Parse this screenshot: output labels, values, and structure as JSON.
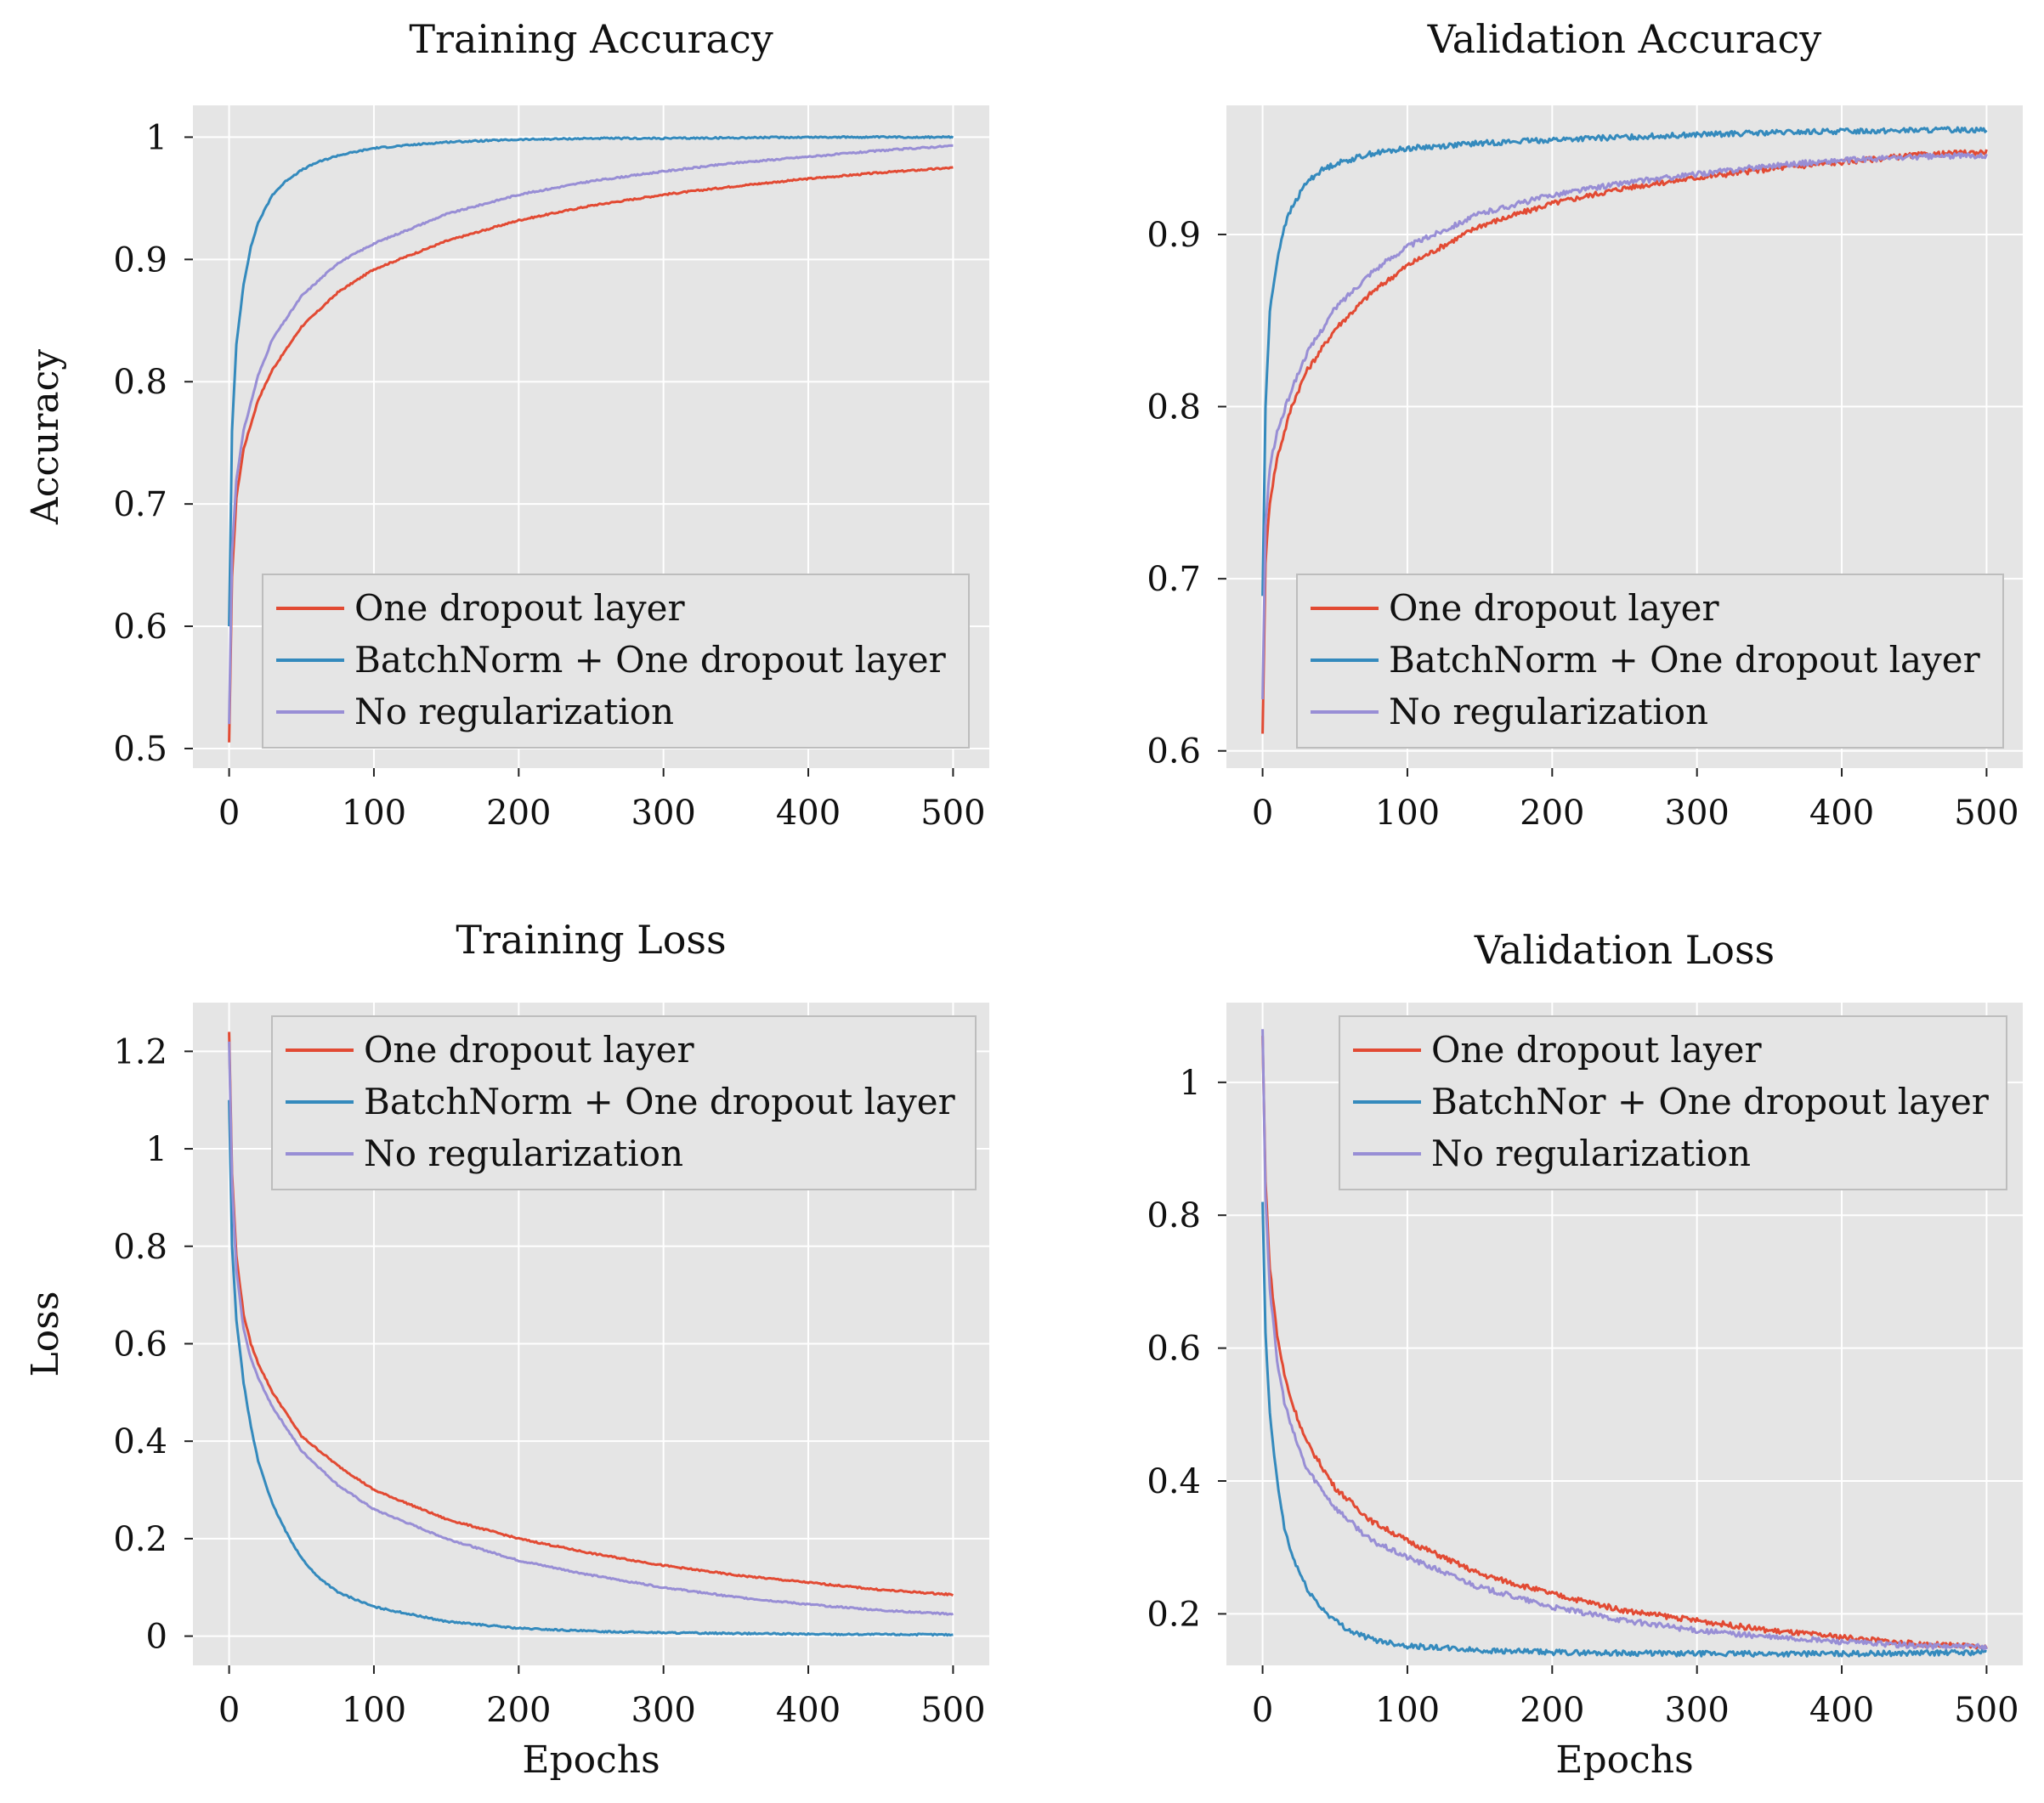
{
  "chart_data": [
    {
      "id": "training-accuracy",
      "type": "line",
      "title": "Training Accuracy",
      "xlabel": "",
      "ylabel": "Accuracy",
      "xlim": [
        -25,
        525
      ],
      "ylim": [
        0.484,
        1.026
      ],
      "xticks": [
        0,
        100,
        200,
        300,
        400,
        500
      ],
      "yticks": [
        0.5,
        0.6,
        0.7,
        0.8,
        0.9,
        1
      ],
      "ytick_labels": [
        "0.5",
        "0.6",
        "0.7",
        "0.8",
        "0.9",
        "1"
      ],
      "grid": true,
      "legend_position": "lower-right",
      "series": [
        {
          "name": "One dropout layer",
          "color": "#E24A33",
          "x": [
            0,
            2,
            5,
            10,
            20,
            30,
            50,
            75,
            100,
            150,
            200,
            250,
            300,
            350,
            400,
            450,
            500
          ],
          "y": [
            0.505,
            0.64,
            0.705,
            0.745,
            0.785,
            0.81,
            0.845,
            0.873,
            0.892,
            0.915,
            0.932,
            0.944,
            0.953,
            0.96,
            0.966,
            0.971,
            0.975
          ]
        },
        {
          "name": "BatchNorm + One dropout layer",
          "color": "#348ABD",
          "x": [
            0,
            2,
            5,
            10,
            15,
            20,
            30,
            40,
            50,
            60,
            75,
            100,
            150,
            200,
            250,
            300,
            400,
            500
          ],
          "y": [
            0.6,
            0.76,
            0.83,
            0.88,
            0.91,
            0.93,
            0.953,
            0.965,
            0.973,
            0.979,
            0.985,
            0.991,
            0.996,
            0.998,
            0.999,
            0.999,
            1.0,
            1.0
          ]
        },
        {
          "name": "No regularization",
          "color": "#988ED5",
          "x": [
            0,
            2,
            5,
            10,
            20,
            30,
            50,
            75,
            100,
            150,
            200,
            250,
            300,
            350,
            400,
            450,
            500
          ],
          "y": [
            0.52,
            0.66,
            0.72,
            0.76,
            0.805,
            0.835,
            0.87,
            0.897,
            0.913,
            0.937,
            0.953,
            0.964,
            0.972,
            0.979,
            0.984,
            0.989,
            0.993
          ]
        }
      ]
    },
    {
      "id": "validation-accuracy",
      "type": "line",
      "title": "Validation Accuracy",
      "xlabel": "",
      "ylabel": "",
      "xlim": [
        -25,
        525
      ],
      "ylim": [
        0.59,
        0.975
      ],
      "xticks": [
        0,
        100,
        200,
        300,
        400,
        500
      ],
      "yticks": [
        0.6,
        0.7,
        0.8,
        0.9
      ],
      "ytick_labels": [
        "0.6",
        "0.7",
        "0.8",
        "0.9"
      ],
      "grid": true,
      "legend_position": "lower-right",
      "series": [
        {
          "name": "One dropout layer",
          "color": "#E24A33",
          "x": [
            0,
            2,
            5,
            10,
            20,
            30,
            50,
            75,
            100,
            150,
            200,
            250,
            300,
            350,
            400,
            450,
            500
          ],
          "y": [
            0.61,
            0.71,
            0.745,
            0.77,
            0.8,
            0.82,
            0.845,
            0.866,
            0.882,
            0.905,
            0.918,
            0.927,
            0.933,
            0.938,
            0.942,
            0.946,
            0.948
          ]
        },
        {
          "name": "BatchNorm + One dropout layer",
          "color": "#348ABD",
          "x": [
            0,
            2,
            5,
            10,
            15,
            20,
            30,
            40,
            50,
            75,
            100,
            150,
            200,
            300,
            400,
            500
          ],
          "y": [
            0.69,
            0.8,
            0.855,
            0.885,
            0.905,
            0.915,
            0.93,
            0.937,
            0.941,
            0.947,
            0.95,
            0.953,
            0.955,
            0.958,
            0.96,
            0.961
          ]
        },
        {
          "name": "No regularization",
          "color": "#988ED5",
          "x": [
            0,
            2,
            5,
            10,
            20,
            30,
            50,
            75,
            100,
            150,
            200,
            250,
            300,
            350,
            400,
            450,
            500
          ],
          "y": [
            0.63,
            0.73,
            0.765,
            0.785,
            0.81,
            0.83,
            0.857,
            0.878,
            0.893,
            0.912,
            0.923,
            0.93,
            0.935,
            0.94,
            0.943,
            0.945,
            0.946
          ]
        }
      ]
    },
    {
      "id": "training-loss",
      "type": "line",
      "title": "Training Loss",
      "xlabel": "Epochs",
      "ylabel": "Loss",
      "xlim": [
        -25,
        525
      ],
      "ylim": [
        -0.06,
        1.3
      ],
      "xticks": [
        0,
        100,
        200,
        300,
        400,
        500
      ],
      "yticks": [
        0,
        0.2,
        0.4,
        0.6,
        0.8,
        1,
        1.2
      ],
      "ytick_labels": [
        "0",
        "0.2",
        "0.4",
        "0.6",
        "0.8",
        "1",
        "1.2"
      ],
      "grid": true,
      "legend_position": "top-right",
      "series": [
        {
          "name": "One dropout layer",
          "color": "#E24A33",
          "x": [
            0,
            2,
            5,
            10,
            15,
            20,
            30,
            50,
            75,
            100,
            150,
            200,
            250,
            300,
            350,
            400,
            450,
            500
          ],
          "y": [
            1.24,
            0.95,
            0.78,
            0.66,
            0.6,
            0.56,
            0.5,
            0.41,
            0.35,
            0.3,
            0.24,
            0.2,
            0.17,
            0.145,
            0.125,
            0.11,
            0.095,
            0.085
          ]
        },
        {
          "name": "BatchNorm + One dropout layer",
          "color": "#348ABD",
          "x": [
            0,
            2,
            5,
            10,
            15,
            20,
            30,
            40,
            50,
            60,
            75,
            100,
            150,
            200,
            250,
            300,
            400,
            500
          ],
          "y": [
            1.1,
            0.8,
            0.65,
            0.52,
            0.43,
            0.36,
            0.27,
            0.21,
            0.16,
            0.125,
            0.09,
            0.06,
            0.03,
            0.016,
            0.01,
            0.007,
            0.004,
            0.003
          ]
        },
        {
          "name": "No regularization",
          "color": "#988ED5",
          "x": [
            0,
            2,
            5,
            10,
            15,
            20,
            30,
            50,
            75,
            100,
            150,
            200,
            250,
            300,
            350,
            400,
            450,
            500
          ],
          "y": [
            1.22,
            0.93,
            0.75,
            0.63,
            0.57,
            0.53,
            0.47,
            0.38,
            0.31,
            0.26,
            0.2,
            0.155,
            0.125,
            0.1,
            0.08,
            0.065,
            0.053,
            0.045
          ]
        }
      ]
    },
    {
      "id": "validation-loss",
      "type": "line",
      "title": "Validation Loss",
      "xlabel": "Epochs",
      "ylabel": "",
      "xlim": [
        -25,
        525
      ],
      "ylim": [
        0.1225,
        1.12
      ],
      "xticks": [
        0,
        100,
        200,
        300,
        400,
        500
      ],
      "yticks": [
        0.2,
        0.4,
        0.6,
        0.8,
        1
      ],
      "ytick_labels": [
        "0.2",
        "0.4",
        "0.6",
        "0.8",
        "1"
      ],
      "grid": true,
      "legend_position": "top-right",
      "series": [
        {
          "name": "One dropout layer",
          "color": "#E24A33",
          "x": [
            0,
            2,
            5,
            10,
            15,
            20,
            30,
            50,
            75,
            100,
            150,
            200,
            250,
            300,
            350,
            400,
            450,
            500
          ],
          "y": [
            1.07,
            0.85,
            0.72,
            0.62,
            0.56,
            0.52,
            0.46,
            0.39,
            0.34,
            0.31,
            0.26,
            0.23,
            0.205,
            0.19,
            0.175,
            0.165,
            0.155,
            0.15
          ]
        },
        {
          "name": "BatchNor + One dropout layer",
          "color": "#348ABD",
          "x": [
            0,
            2,
            5,
            10,
            15,
            20,
            30,
            40,
            50,
            60,
            75,
            100,
            150,
            200,
            300,
            400,
            500
          ],
          "y": [
            0.82,
            0.62,
            0.5,
            0.4,
            0.33,
            0.29,
            0.24,
            0.21,
            0.19,
            0.175,
            0.162,
            0.152,
            0.145,
            0.142,
            0.14,
            0.14,
            0.142
          ]
        },
        {
          "name": "No regularization",
          "color": "#988ED5",
          "x": [
            0,
            2,
            5,
            10,
            15,
            20,
            30,
            50,
            75,
            100,
            150,
            200,
            250,
            300,
            350,
            400,
            450,
            500
          ],
          "y": [
            1.08,
            0.83,
            0.69,
            0.58,
            0.52,
            0.48,
            0.42,
            0.36,
            0.31,
            0.285,
            0.24,
            0.21,
            0.19,
            0.175,
            0.165,
            0.158,
            0.152,
            0.15
          ]
        }
      ]
    }
  ]
}
